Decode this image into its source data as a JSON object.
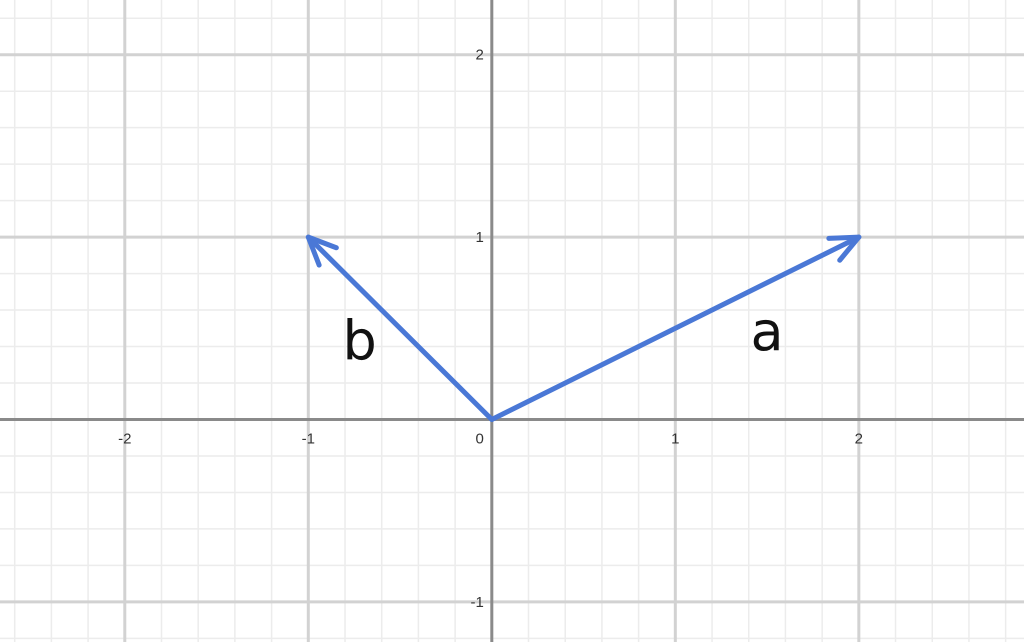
{
  "view": {
    "xmin": -2.68,
    "xmax": 2.9,
    "ymin": -1.22,
    "ymax": 2.3
  },
  "colors": {
    "background": "#ffffff",
    "minor_grid": "#ececec",
    "major_grid": "#d2d2d2",
    "axis": "#8a8a8a",
    "vector": "#4a78d6",
    "label": "#111111"
  },
  "x_ticks": [
    {
      "value": -2,
      "label": "-2"
    },
    {
      "value": -1,
      "label": "-1"
    },
    {
      "value": 0,
      "label": "0"
    },
    {
      "value": 1,
      "label": "1"
    },
    {
      "value": 2,
      "label": "2"
    }
  ],
  "y_ticks": [
    {
      "value": 2,
      "label": "2"
    },
    {
      "value": 1,
      "label": "1"
    },
    {
      "value": -1,
      "label": "-1"
    }
  ],
  "minor_step": 0.2,
  "vectors": [
    {
      "name": "a",
      "from": [
        0,
        0
      ],
      "to": [
        2,
        1
      ],
      "label": "a",
      "label_at": [
        1.5,
        0.38
      ]
    },
    {
      "name": "b",
      "from": [
        0,
        0
      ],
      "to": [
        -1,
        1
      ],
      "label": "b",
      "label_at": [
        -0.72,
        0.33
      ]
    }
  ]
}
